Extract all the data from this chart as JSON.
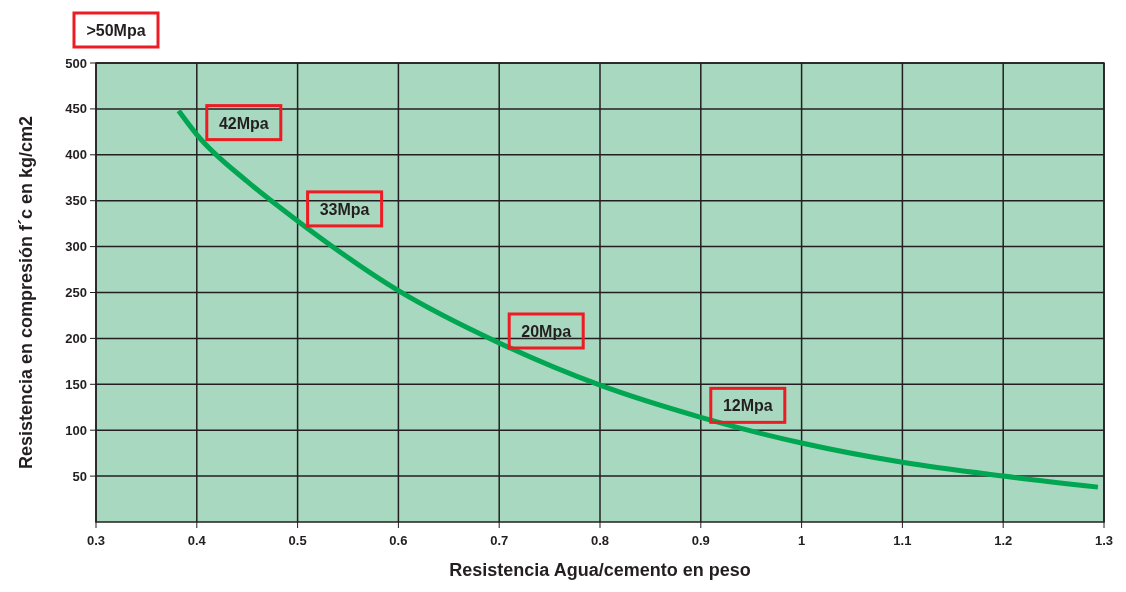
{
  "chart_data": {
    "type": "line",
    "xlabel": "Resistencia Agua/cemento en peso",
    "ylabel": "Resistencia en compresión f´c en kg/cm2",
    "x": [
      0.382,
      0.4,
      0.45,
      0.5,
      0.6,
      0.7,
      0.8,
      0.9,
      1.0,
      1.1,
      1.2,
      1.294
    ],
    "series": [
      {
        "color": "#00a651",
        "values": [
          448,
          422,
          371,
          328,
          252,
          195,
          149,
          114,
          86,
          65,
          50,
          38
        ]
      }
    ],
    "xlim": [
      0.3,
      1.3
    ],
    "xticks": [
      0.3,
      0.4,
      0.5,
      0.6,
      0.7,
      0.8,
      0.9,
      1,
      1.1,
      1.2,
      1.3
    ],
    "ylim": [
      0,
      500
    ],
    "yticks": [
      50,
      100,
      150,
      200,
      250,
      300,
      350,
      400,
      450,
      500
    ],
    "grid": true,
    "marker": "none",
    "line_style": "solid",
    "annotations": [
      ">50Mpa",
      {
        "text": "42Mpa",
        "x": 0.4,
        "y": 422
      },
      {
        "text": "33Mpa",
        "x": 0.5,
        "y": 328
      },
      {
        "text": "20Mpa",
        "x": 0.7,
        "y": 195
      },
      {
        "text": "12Mpa",
        "x": 0.9,
        "y": 114
      }
    ]
  }
}
